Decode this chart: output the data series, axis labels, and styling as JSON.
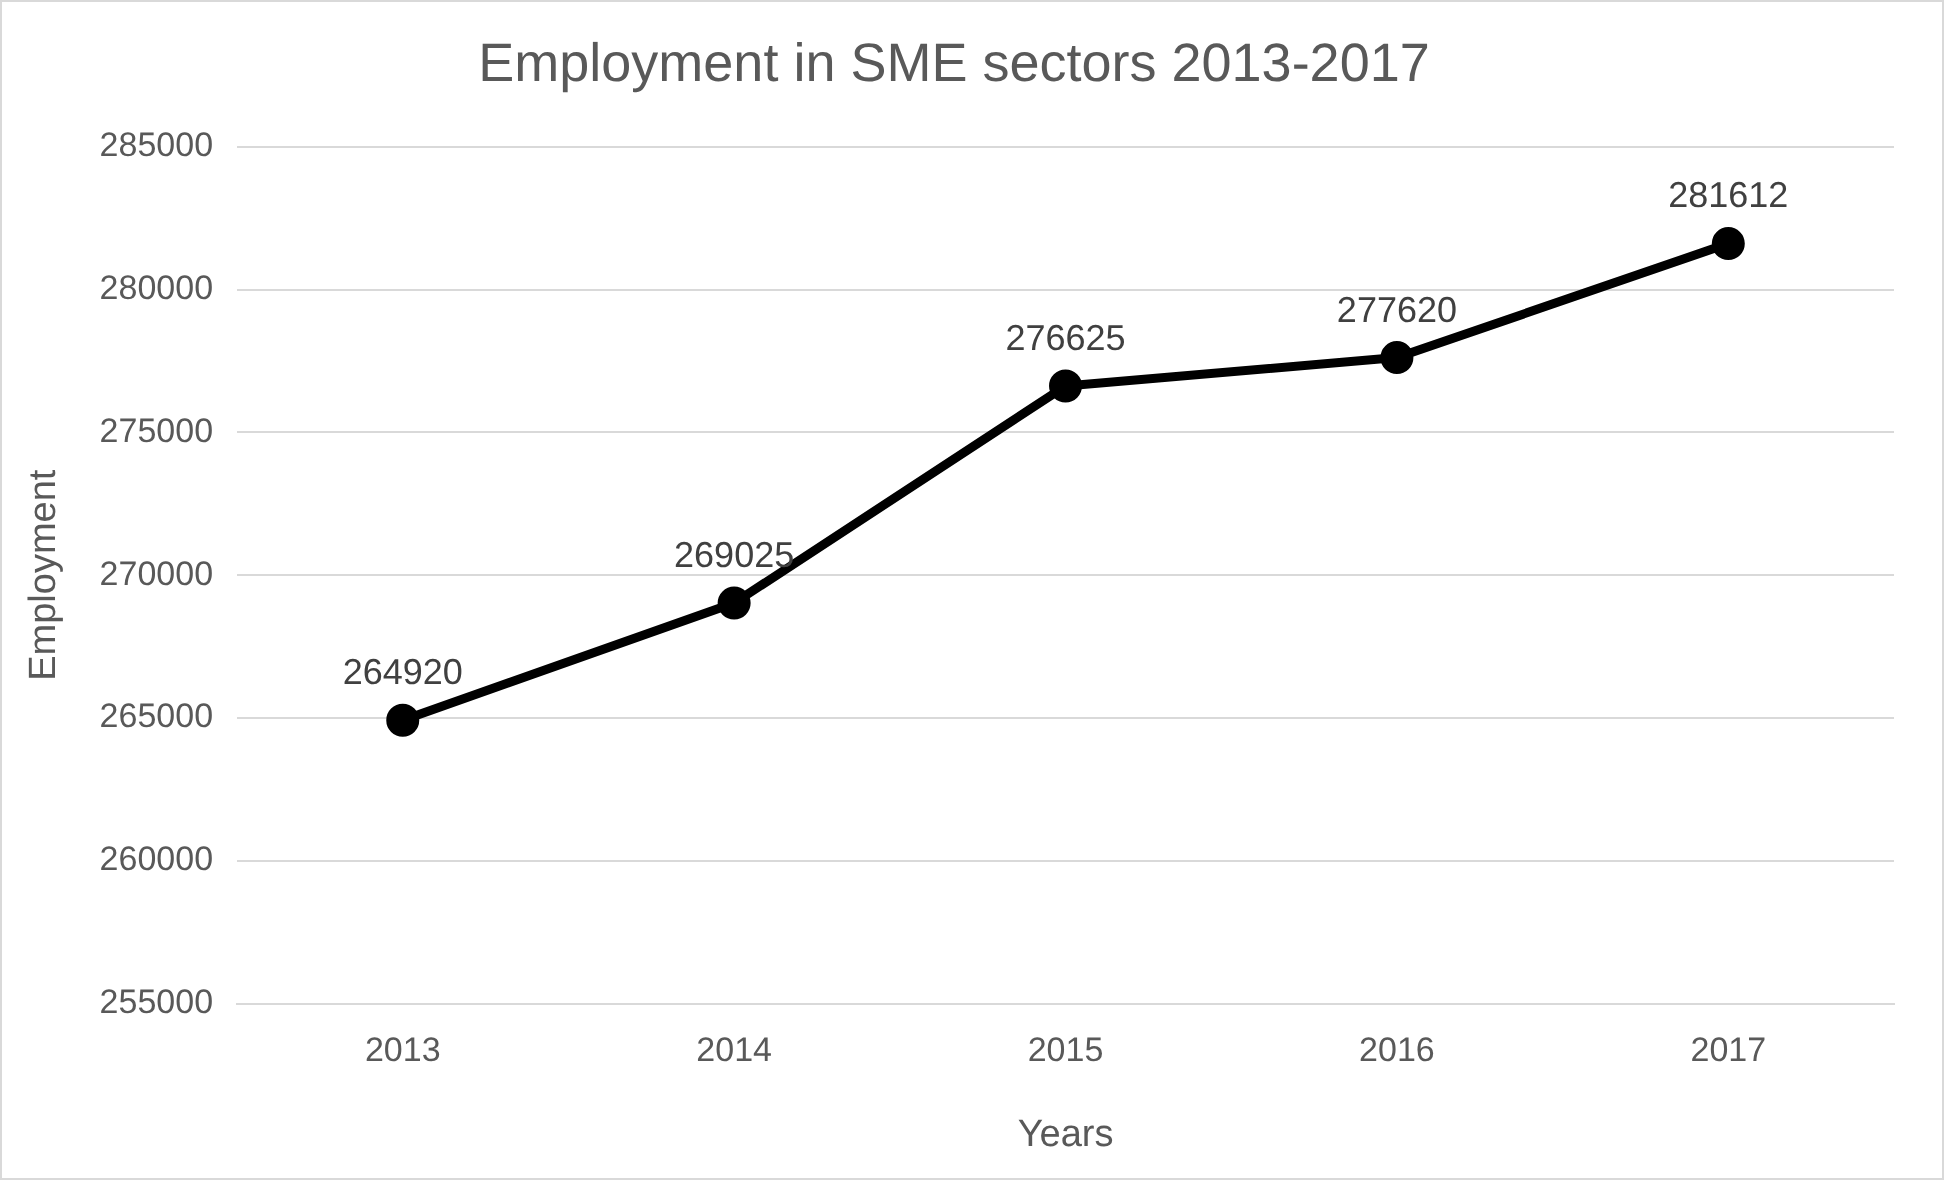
{
  "chart_data": {
    "type": "line",
    "title": "Employment in SME sectors 2013-2017",
    "xlabel": "Years",
    "ylabel": "Employment",
    "categories": [
      "2013",
      "2014",
      "2015",
      "2016",
      "2017"
    ],
    "series": [
      {
        "color": "#000000",
        "values": [
          264920,
          269025,
          276625,
          277620,
          281612
        ]
      }
    ],
    "ylim": [
      255000,
      285000
    ],
    "yticks": [
      255000,
      260000,
      265000,
      270000,
      275000,
      280000,
      285000
    ],
    "grid": "y",
    "marker": "circle",
    "line_style": "solid",
    "data_labels": true,
    "legend": false
  }
}
